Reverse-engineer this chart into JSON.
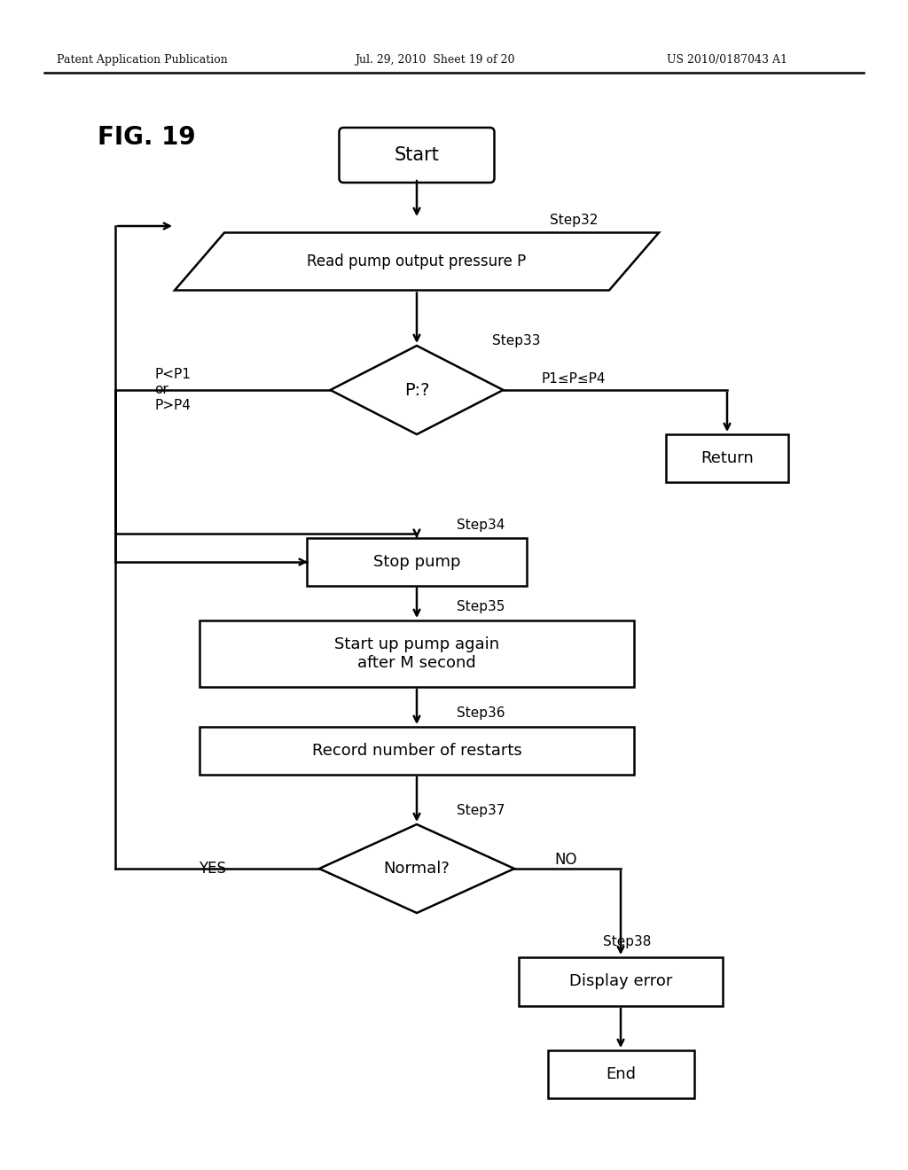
{
  "header_left": "Patent Application Publication",
  "header_mid": "Jul. 29, 2010  Sheet 19 of 20",
  "header_right": "US 2010/0187043 A1",
  "fig_label": "FIG. 19",
  "background_color": "#ffffff",
  "line_color": "#000000",
  "start_text": "Start",
  "step32_label": "Step32",
  "step32_text": "Read pump output pressure P",
  "step33_label": "Step33",
  "step33_text": "P:?",
  "label_left33_line1": "P<P1",
  "label_left33_line2": "or",
  "label_left33_line3": "P>P4",
  "label_right33": "P1≤P≤P4",
  "return_text": "Return",
  "step34_label": "Step34",
  "step34_text": "Stop pump",
  "step35_label": "Step35",
  "step35_text": "Start up pump again\nafter M second",
  "step36_label": "Step36",
  "step36_text": "Record number of restarts",
  "step37_label": "Step37",
  "step37_text": "Normal?",
  "yes_text": "YES",
  "no_text": "NO",
  "step38_label": "Step38",
  "step38_text": "Display error",
  "end_text": "End"
}
